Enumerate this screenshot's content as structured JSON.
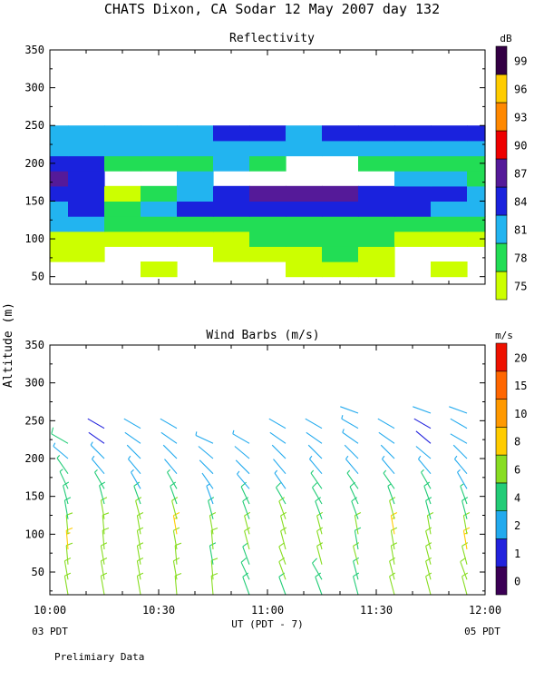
{
  "header": {
    "title": "CHATS Dixon, CA  Sodar  12 May 2007  day 132"
  },
  "panels": {
    "reflectivity_title": "Reflectivity",
    "wind_title": "Wind Barbs (m/s)",
    "refl_unit": "dB",
    "wind_unit": "m/s"
  },
  "axes": {
    "y_label": "Altitude (m)",
    "x_label": "UT  (PDT - 7)",
    "x_start_note": "03 PDT",
    "x_end_note": "05 PDT"
  },
  "footer": {
    "note": "Prelimiary Data"
  },
  "colors": {
    "background": "#ffffff",
    "reflectivity_scale": [
      "#ccff00",
      "#22dd55",
      "#22b4f0",
      "#1a22dd",
      "#551a99",
      "#ee0000",
      "#ff8800",
      "#ffcc00",
      "#330044"
    ],
    "wind_scale": [
      "#3b0055",
      "#2222dd",
      "#22aaee",
      "#22cc77",
      "#88dd22",
      "#ffcc00",
      "#ff9900",
      "#ff6600",
      "#ee1100"
    ]
  },
  "chart_data": [
    {
      "type": "heatmap",
      "title": "Reflectivity",
      "ylabel": "Altitude (m)",
      "xlabel": "UT  (PDT - 7)",
      "x_ticks": [
        "10:00",
        "10:30",
        "11:00",
        "11:30",
        "12:00"
      ],
      "y_ticks": [
        50,
        100,
        150,
        200,
        250,
        300,
        350
      ],
      "xlim": [
        "10:00",
        "12:00"
      ],
      "ylim": [
        20,
        350
      ],
      "colorbar": {
        "unit": "dB",
        "levels": [
          75,
          78,
          81,
          84,
          87,
          90,
          93,
          96,
          99
        ],
        "colors": [
          "#ccff00",
          "#22dd55",
          "#22b4f0",
          "#1a22dd",
          "#551a99",
          "#ee0000",
          "#ff8800",
          "#ffcc00",
          "#330044"
        ]
      },
      "times": [
        "10:00",
        "10:10",
        "10:20",
        "10:30",
        "10:40",
        "10:50",
        "11:00",
        "11:10",
        "11:20",
        "11:30",
        "11:40",
        "11:50",
        "12:00"
      ],
      "altitudes": [
        40,
        60,
        80,
        100,
        120,
        140,
        160,
        180,
        200,
        220,
        240
      ],
      "values": [
        [
          -1,
          -1,
          -1,
          -1,
          -1,
          -1,
          -1,
          -1,
          -1,
          -1,
          -1,
          -1,
          -1
        ],
        [
          -1,
          -1,
          -1,
          0,
          -1,
          -1,
          -1,
          0,
          0,
          0,
          -1,
          0,
          -1
        ],
        [
          0,
          0,
          -1,
          -1,
          -1,
          0,
          0,
          0,
          1,
          0,
          -1,
          -1,
          -1
        ],
        [
          0,
          0,
          0,
          0,
          0,
          0,
          1,
          1,
          1,
          1,
          0,
          0,
          0
        ],
        [
          2,
          2,
          1,
          1,
          1,
          1,
          1,
          1,
          1,
          1,
          1,
          1,
          1
        ],
        [
          2,
          3,
          1,
          2,
          3,
          3,
          3,
          3,
          3,
          3,
          3,
          2,
          2
        ],
        [
          3,
          3,
          0,
          1,
          2,
          3,
          4,
          4,
          4,
          3,
          3,
          3,
          2
        ],
        [
          4,
          3,
          -1,
          -1,
          2,
          -1,
          -1,
          -1,
          -1,
          -1,
          2,
          2,
          1
        ],
        [
          3,
          3,
          1,
          1,
          1,
          2,
          1,
          -1,
          -1,
          1,
          1,
          1,
          1
        ],
        [
          2,
          2,
          2,
          2,
          2,
          2,
          2,
          2,
          2,
          2,
          2,
          2,
          2
        ],
        [
          2,
          2,
          2,
          2,
          2,
          3,
          3,
          2,
          3,
          3,
          3,
          3,
          3
        ]
      ]
    },
    {
      "type": "scatter",
      "title": "Wind Barbs (m/s)",
      "ylabel": "Altitude (m)",
      "xlabel": "UT  (PDT - 7)",
      "x_ticks": [
        "10:00",
        "10:30",
        "11:00",
        "11:30",
        "12:00"
      ],
      "y_ticks": [
        50,
        100,
        150,
        200,
        250,
        300,
        350
      ],
      "xlim": [
        "10:00",
        "12:00"
      ],
      "ylim": [
        20,
        350
      ],
      "colorbar": {
        "unit": "m/s",
        "levels": [
          0,
          1,
          2,
          4,
          6,
          8,
          10,
          15,
          20
        ],
        "colors": [
          "#3b0055",
          "#2222dd",
          "#22aaee",
          "#22cc77",
          "#88dd22",
          "#ffcc00",
          "#ff9900",
          "#ff6600",
          "#ee1100"
        ]
      },
      "times": [
        "10:05",
        "10:15",
        "10:25",
        "10:35",
        "10:45",
        "10:55",
        "11:05",
        "11:15",
        "11:25",
        "11:35",
        "11:45",
        "11:55"
      ],
      "altitudes": [
        20,
        40,
        60,
        80,
        100,
        120,
        140,
        160,
        180,
        200,
        220,
        240,
        260
      ],
      "speeds": [
        [
          6,
          6,
          6,
          6,
          6,
          5,
          5,
          5,
          5,
          6,
          6,
          6
        ],
        [
          6,
          6,
          6,
          6,
          6,
          5,
          6,
          5,
          5,
          6,
          6,
          6
        ],
        [
          7,
          7,
          6,
          6,
          5,
          5,
          6,
          6,
          6,
          6,
          6,
          6
        ],
        [
          8,
          7,
          7,
          6,
          6,
          6,
          6,
          6,
          5,
          7,
          6,
          8
        ],
        [
          7,
          7,
          6,
          8,
          6,
          6,
          6,
          6,
          6,
          9,
          6,
          6
        ],
        [
          5,
          6,
          6,
          6,
          5,
          5,
          6,
          5,
          5,
          6,
          5,
          5
        ],
        [
          5,
          5,
          5,
          5,
          3,
          5,
          5,
          5,
          5,
          4,
          5,
          4
        ],
        [
          4,
          4,
          3,
          4,
          2,
          3,
          3,
          4,
          4,
          4,
          4,
          3
        ],
        [
          4,
          3,
          3,
          2,
          2,
          2,
          2,
          3,
          3,
          3,
          3,
          3
        ],
        [
          3,
          3,
          2,
          2,
          2,
          2,
          2,
          2,
          2,
          2,
          2,
          2
        ],
        [
          5,
          1,
          2,
          2,
          3,
          3,
          2,
          2,
          3,
          2,
          1,
          2
        ],
        [
          -1,
          1,
          2,
          2,
          -1,
          -1,
          2,
          2,
          3,
          2,
          1,
          2
        ],
        [
          -1,
          -1,
          -1,
          -1,
          -1,
          -1,
          -1,
          -1,
          2,
          -1,
          2,
          2
        ]
      ],
      "directions": [
        [
          350,
          350,
          350,
          355,
          355,
          340,
          340,
          340,
          345,
          345,
          345,
          345
        ],
        [
          350,
          350,
          350,
          350,
          355,
          335,
          340,
          330,
          345,
          345,
          345,
          340
        ],
        [
          355,
          350,
          350,
          355,
          350,
          340,
          340,
          345,
          345,
          350,
          345,
          345
        ],
        [
          355,
          355,
          350,
          350,
          355,
          345,
          345,
          345,
          350,
          350,
          345,
          350
        ],
        [
          355,
          355,
          350,
          350,
          350,
          345,
          345,
          345,
          350,
          350,
          350,
          350
        ],
        [
          350,
          350,
          345,
          345,
          345,
          340,
          340,
          340,
          340,
          345,
          345,
          345
        ],
        [
          345,
          345,
          340,
          340,
          340,
          335,
          330,
          330,
          335,
          340,
          340,
          340
        ],
        [
          335,
          330,
          330,
          330,
          325,
          320,
          325,
          325,
          325,
          325,
          330,
          330
        ],
        [
          325,
          320,
          320,
          320,
          315,
          315,
          320,
          320,
          320,
          320,
          320,
          320
        ],
        [
          310,
          315,
          315,
          315,
          310,
          310,
          315,
          315,
          315,
          315,
          310,
          315
        ],
        [
          300,
          305,
          305,
          305,
          295,
          300,
          305,
          305,
          305,
          305,
          310,
          300
        ],
        [
          -1,
          300,
          300,
          300,
          -1,
          -1,
          300,
          300,
          300,
          300,
          300,
          300
        ],
        [
          -1,
          -1,
          -1,
          -1,
          -1,
          -1,
          -1,
          -1,
          290,
          -1,
          290,
          290
        ]
      ]
    }
  ]
}
